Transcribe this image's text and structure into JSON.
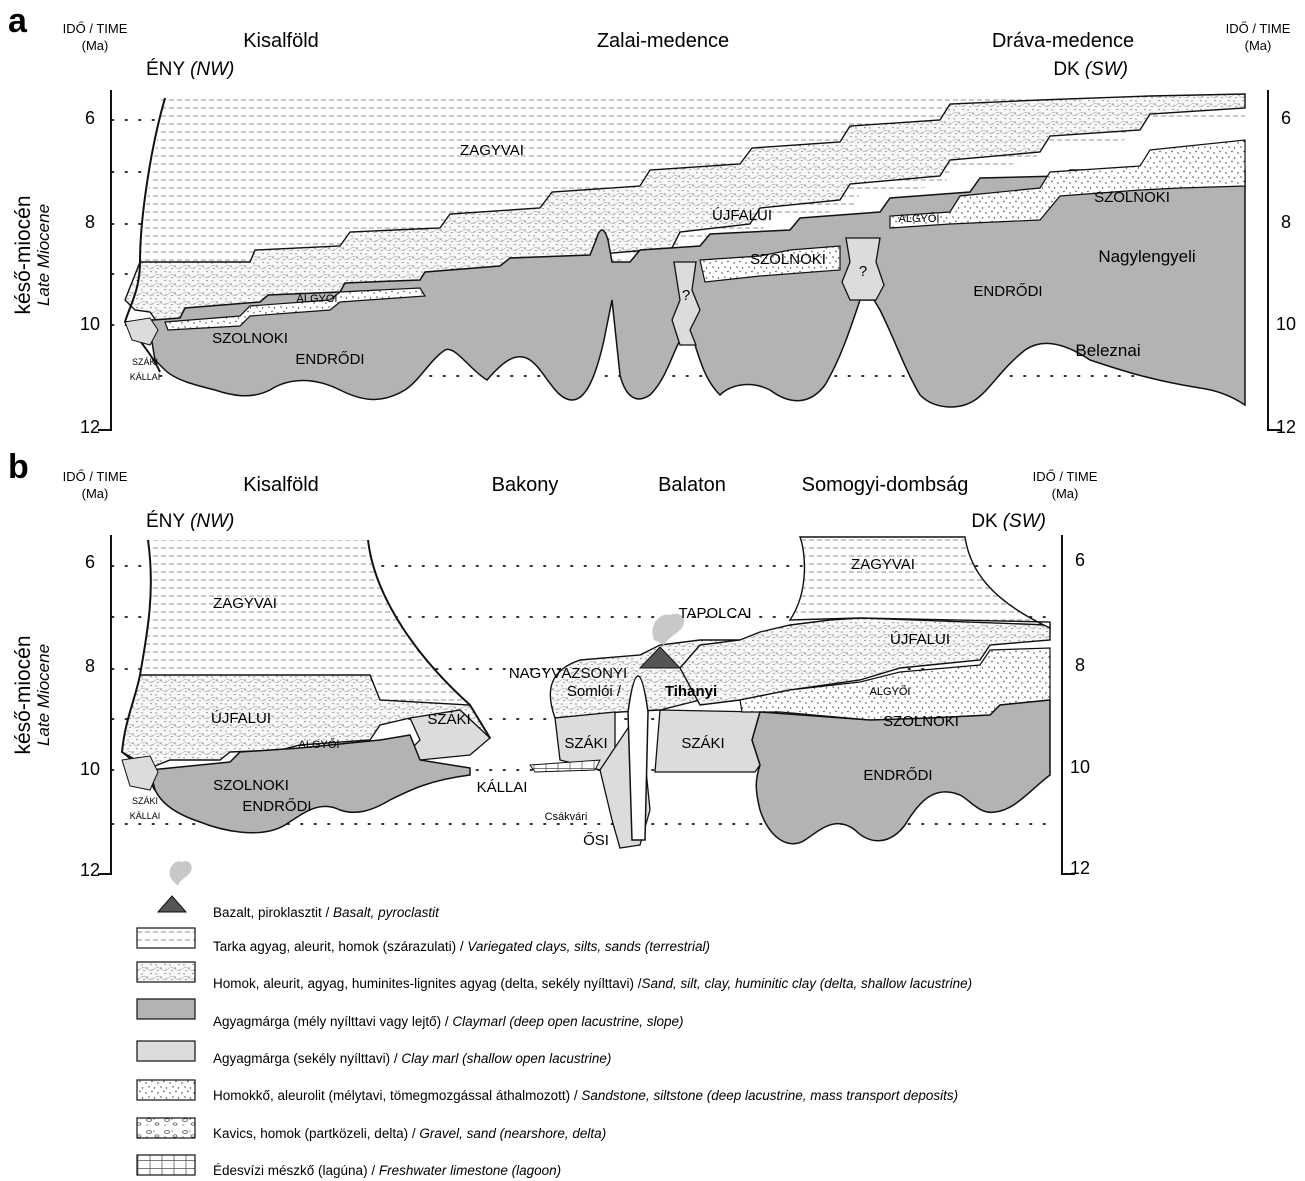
{
  "panel_a": {
    "letter": "a",
    "time_label_left": "IDŐ / TIME",
    "time_label_right": "IDŐ / TIME",
    "ma_label_left": "(Ma)",
    "ma_label_right": "(Ma)",
    "region_1": "Kisalföld",
    "region_2": "Zalai-medence",
    "region_3": "Dráva-medence",
    "direction_left": "ÉNY",
    "direction_left_italic": "(NW)",
    "direction_right": "DK",
    "direction_right_italic": "(SW)",
    "ticks": [
      "6",
      "8",
      "10",
      "12"
    ],
    "epoch_hu": "késő-miocén",
    "epoch_en": "Late Miocene",
    "units": {
      "zagyvai": "ZAGYVAI",
      "ujfalui": "ÚJFALUI",
      "algyoi_1": "ALGYŐI",
      "algyoi_2": "ALGYŐI",
      "szolnoki_1": "SZOLNOKI",
      "szolnoki_2": "SZOLNOKI",
      "szolnoki_3": "SZOLNOKI",
      "endrodi_1": "ENDRŐDI",
      "endrodi_2": "ENDRŐDI",
      "nagylengyeli": "Nagylengyeli",
      "beleznai": "Beleznai",
      "szaki": "SZÁKI",
      "kallai": "KÁLLAI",
      "q1": "?",
      "q2": "?"
    }
  },
  "panel_b": {
    "letter": "b",
    "time_label_left": "IDŐ / TIME",
    "time_label_right": "IDŐ / TIME",
    "ma_label_left": "(Ma)",
    "ma_label_right": "(Ma)",
    "region_1": "Kisalföld",
    "region_2": "Bakony",
    "region_3": "Balaton",
    "region_4": "Somogyi-dombság",
    "direction_left": "ÉNY",
    "direction_left_italic": "(NW)",
    "direction_right": "DK",
    "direction_right_italic": "(SW)",
    "ticks": [
      "6",
      "8",
      "10",
      "12"
    ],
    "epoch_hu": "késő-miocén",
    "epoch_en": "Late Miocene",
    "units": {
      "zagyvai_1": "ZAGYVAI",
      "zagyvai_2": "ZAGYVAI",
      "ujfalui_1": "ÚJFALUI",
      "ujfalui_2": "ÚJFALUI",
      "algyoi_1": "ALGYŐI",
      "algyoi_2": "ALGYŐI",
      "szolnoki_1": "SZOLNOKI",
      "szolnoki_2": "SZOLNOKI",
      "endrodi_1": "ENDRŐDI",
      "endrodi_2": "ENDRŐDI",
      "szaki_1": "SZÁKI",
      "szaki_2": "SZÁKI",
      "szaki_3": "SZÁKI",
      "kallai": "KÁLLAI",
      "szaki_small": "SZÁKI",
      "kallai_small": "KÁLLAI",
      "nagyvazsonyi": "NAGYVÁZSONYI",
      "tapolcai": "TAPOLCAI",
      "somloi": "Somlói /",
      "tihanyi": "Tihanyi",
      "csakvari": "Csákvári",
      "osi": "ŐSI"
    }
  },
  "legend": [
    {
      "key": "basalt",
      "hu": "Bazalt, piroklasztit / ",
      "en": "Basalt, pyroclastit"
    },
    {
      "key": "variegated",
      "hu": "Tarka agyag, aleurit, homok (szárazulati) / ",
      "en": "Variegated clays, silts, sands (terrestrial)"
    },
    {
      "key": "delta",
      "hu": "Homok, aleurit, agyag, huminites-lignites agyag (delta, sekély nyílttavi) /",
      "en": "Sand, silt, clay, huminitic clay (delta, shallow lacustrine)"
    },
    {
      "key": "claymarl_deep",
      "hu": "Agyagmárga  (mély nyílttavi vagy  lejtő) / ",
      "en": "Claymarl (deep open lacustrine, slope)"
    },
    {
      "key": "claymarl_shallow",
      "hu": "Agyagmárga (sekély nyílttavi) / ",
      "en": "Clay marl (shallow open lacustrine)"
    },
    {
      "key": "sandstone",
      "hu": "Homokkő, aleurolit (mélytavi, tömegmozgással áthalmozott) / ",
      "en": "Sandstone, siltstone (deep lacustrine, mass transport deposits)"
    },
    {
      "key": "gravel",
      "hu": "Kavics, homok (partközeli, delta) / ",
      "en": "Gravel, sand (nearshore, delta)"
    },
    {
      "key": "limestone",
      "hu": "Édesvízi mészkő (lagúna) / ",
      "en": "Freshwater limestone (lagoon)"
    }
  ],
  "colors": {
    "deep_marl": "#b3b3b3",
    "shallow_marl": "#dcdcdc",
    "basalt": "#555555",
    "smoke": "#c8c8c8",
    "line": "#111111"
  }
}
